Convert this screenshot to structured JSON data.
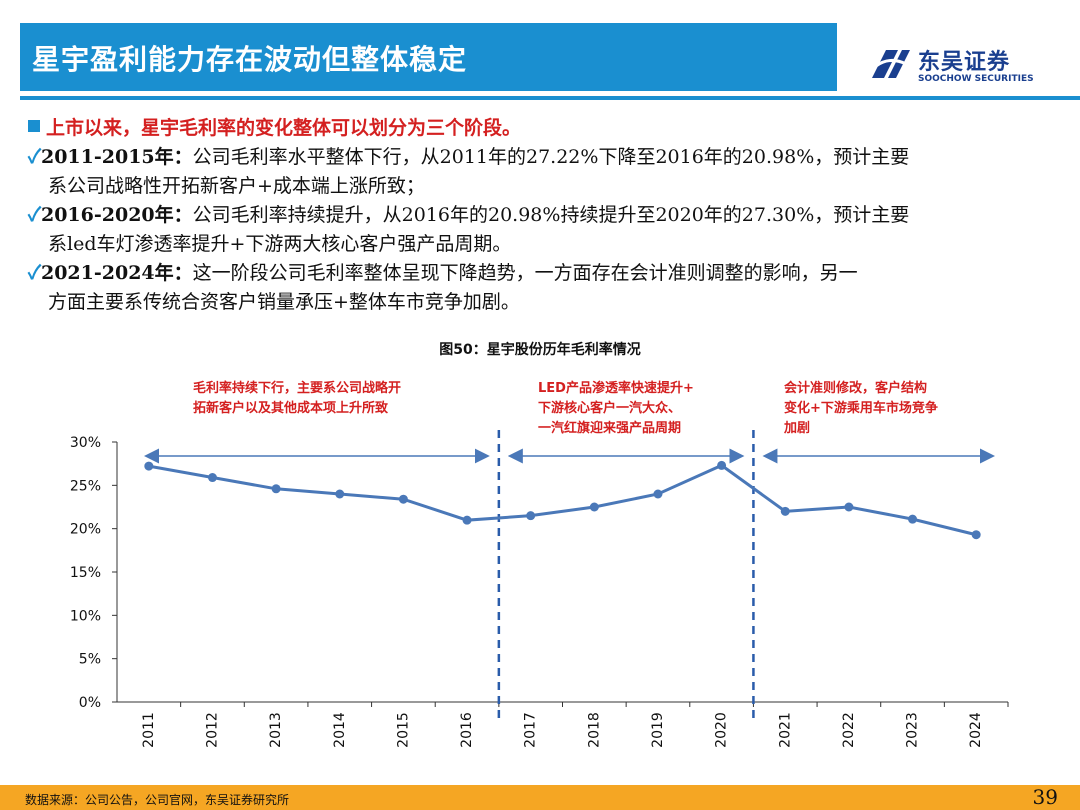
{
  "header": {
    "title": "星宇盈利能力存在波动但整体稳定",
    "logo_cn": "东吴证券",
    "logo_en": "SOOCHOW SECURITIES"
  },
  "body": {
    "lead": "上市以来，星宇毛利率的变化整体可以划分为三个阶段。",
    "items": [
      {
        "check": "✓",
        "period": "2011-2015年：",
        "text": "公司毛利率水平整体下行，从2011年的27.22%下降至2016年的20.98%，预计主要",
        "cont": "系公司战略性开拓新客户+成本端上涨所致；"
      },
      {
        "check": "✓",
        "period": "2016-2020年：",
        "text": "公司毛利率持续提升，从2016年的20.98%持续提升至2020年的27.30%，预计主要",
        "cont": "系led车灯渗透率提升+下游两大核心客户强产品周期。"
      },
      {
        "check": "✓",
        "period": "2021-2024年：",
        "text": "这一阶段公司毛利率整体呈现下降趋势，一方面存在会计准则调整的影响，另一",
        "cont": "方面主要系传统合资客户销量承压+整体车市竞争加剧。"
      }
    ]
  },
  "chart_data": {
    "type": "line",
    "title": "图50：星宇股份历年毛利率情况",
    "categories": [
      "2011",
      "2012",
      "2013",
      "2014",
      "2015",
      "2016",
      "2017",
      "2018",
      "2019",
      "2020",
      "2021",
      "2022",
      "2023",
      "2024"
    ],
    "series": [
      {
        "name": "毛利率",
        "values": [
          27.22,
          25.9,
          24.6,
          24.0,
          23.4,
          20.98,
          21.5,
          22.5,
          24.0,
          27.3,
          22.0,
          22.5,
          21.1,
          19.3
        ]
      }
    ],
    "ylim": [
      0,
      30
    ],
    "yticks": [
      "0%",
      "5%",
      "10%",
      "15%",
      "20%",
      "25%",
      "30%"
    ],
    "ytick_values": [
      0,
      5,
      10,
      15,
      20,
      25,
      30
    ],
    "dividers_after": [
      "2016",
      "2020"
    ],
    "annotations": [
      {
        "lines": [
          "毛利率持续下行，主要系公司战略开",
          "拓新客户以及其他成本项上升所致"
        ]
      },
      {
        "lines": [
          "LED产品渗透率快速提升+",
          "下游核心客户一汽大众、",
          "一汽红旗迎来强产品周期"
        ]
      },
      {
        "lines": [
          "会计准则修改，客户结构",
          "变化+下游乘用车市场竞争",
          "加剧"
        ]
      }
    ],
    "color": "#4a78b8",
    "annotation_color": "#d42020"
  },
  "footer": {
    "source": "数据来源：公司公告，公司官网，东吴证券研究所",
    "page": "39"
  }
}
